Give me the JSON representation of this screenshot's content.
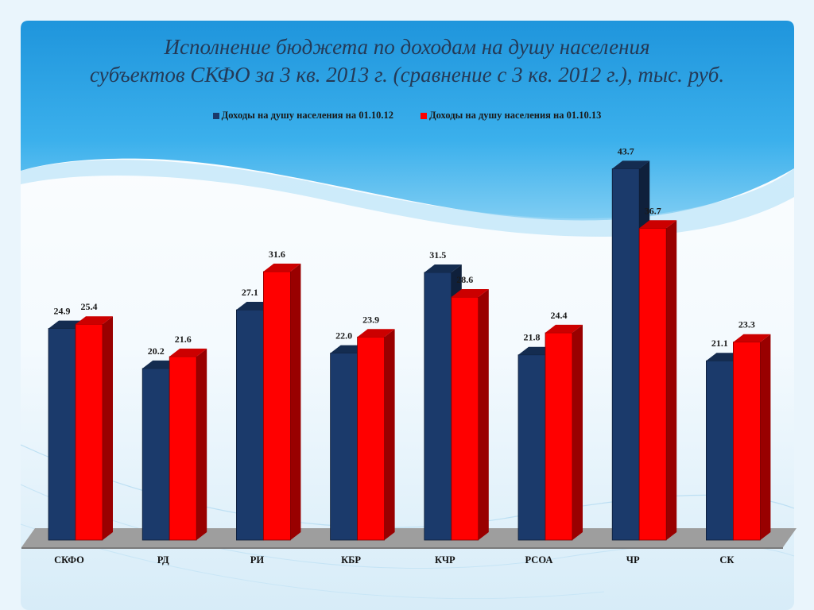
{
  "title": {
    "line1": "Исполнение бюджета по доходам на душу населения",
    "line2": "субъектов СКФО за 3 кв. 2013 г. (сравнение с 3 кв. 2012 г.), тыс. руб."
  },
  "colors": {
    "series1": "#1b3a6b",
    "series2": "#ff0000"
  },
  "chart_data": {
    "type": "bar",
    "categories": [
      "СКФО",
      "РД",
      "РИ",
      "КБР",
      "КЧР",
      "РСОА",
      "ЧР",
      "СК"
    ],
    "series": [
      {
        "name": "Доходы на душу населения на 01.10.12",
        "values": [
          24.9,
          20.2,
          27.1,
          22.0,
          31.5,
          21.8,
          43.7,
          21.1
        ]
      },
      {
        "name": "Доходы на душу населения на 01.10.13",
        "values": [
          25.4,
          21.6,
          31.6,
          23.9,
          28.6,
          24.4,
          36.7,
          23.3
        ]
      }
    ],
    "value_labels": {
      "series1": [
        "24.9",
        "20.2",
        "27.1",
        "22.0",
        "31.5",
        "21.8",
        "43.7",
        "21.1"
      ],
      "series2": [
        "25.4",
        "21.6",
        "31.6",
        "23.9",
        "28.6",
        "24.4",
        "36.7",
        "23.3"
      ]
    },
    "title": "Исполнение бюджета по доходам на душу населения субъектов СКФО за 3 кв. 2013 г. (сравнение с 3 кв. 2012 г.), тыс. руб.",
    "xlabel": "",
    "ylabel": "",
    "ylim": [
      0,
      45
    ],
    "grid": false,
    "legend_position": "top-center",
    "style": "3d-column"
  }
}
